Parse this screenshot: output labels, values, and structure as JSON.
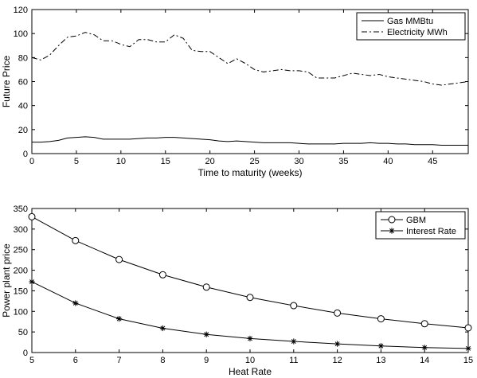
{
  "chart_data": [
    {
      "type": "line",
      "xlabel": "Time to maturity (weeks)",
      "ylabel": "Future Price",
      "xlim": [
        0,
        49
      ],
      "ylim": [
        0,
        120
      ],
      "xticks": [
        0,
        5,
        10,
        15,
        20,
        25,
        30,
        35,
        40,
        45
      ],
      "yticks": [
        0,
        20,
        40,
        60,
        80,
        100,
        120
      ],
      "legend": "top-right",
      "series": [
        {
          "name": "Gas MMBtu",
          "style": "solid",
          "marker": "none",
          "x": [
            0,
            1,
            2,
            3,
            4,
            5,
            6,
            7,
            8,
            9,
            10,
            11,
            12,
            13,
            14,
            15,
            16,
            17,
            18,
            19,
            20,
            21,
            22,
            23,
            24,
            25,
            26,
            27,
            28,
            29,
            30,
            31,
            32,
            33,
            34,
            35,
            36,
            37,
            38,
            39,
            40,
            41,
            42,
            43,
            44,
            45,
            46,
            47,
            48,
            49
          ],
          "values": [
            9.5,
            9.5,
            10,
            11,
            13,
            13.5,
            14,
            13.5,
            12,
            12,
            12,
            12,
            12.5,
            13,
            13,
            13.5,
            13.5,
            13,
            12.5,
            12,
            11.5,
            10.5,
            10,
            10.5,
            10,
            9.5,
            9,
            9,
            9,
            9,
            8.5,
            8,
            8,
            8,
            8,
            8.5,
            8.5,
            8.5,
            9,
            8.5,
            8.5,
            8,
            8,
            7.5,
            7.5,
            7.5,
            7,
            7,
            7,
            7
          ]
        },
        {
          "name": "Electricity MWh",
          "style": "dashdot",
          "marker": "none",
          "x": [
            0,
            1,
            2,
            3,
            4,
            5,
            6,
            7,
            8,
            9,
            10,
            11,
            12,
            13,
            14,
            15,
            16,
            17,
            18,
            19,
            20,
            21,
            22,
            23,
            24,
            25,
            26,
            27,
            28,
            29,
            30,
            31,
            32,
            33,
            34,
            35,
            36,
            37,
            38,
            39,
            40,
            41,
            42,
            43,
            44,
            45,
            46,
            47,
            48,
            49
          ],
          "values": [
            80,
            78,
            82,
            90,
            97,
            98,
            101,
            99,
            94,
            94,
            91,
            89,
            95,
            95,
            93,
            93,
            99,
            96,
            86,
            85,
            85,
            80,
            75,
            79,
            75,
            70,
            68,
            69,
            70,
            69,
            69,
            68,
            63,
            63,
            63,
            65,
            67,
            66,
            65,
            66,
            64,
            63,
            62,
            61,
            60,
            58,
            57,
            58,
            59,
            60
          ]
        }
      ]
    },
    {
      "type": "line",
      "xlabel": "Heat Rate",
      "ylabel": "Power plant price",
      "xlim": [
        5,
        15
      ],
      "ylim": [
        0,
        350
      ],
      "xticks": [
        5,
        6,
        7,
        8,
        9,
        10,
        11,
        12,
        13,
        14,
        15
      ],
      "yticks": [
        0,
        50,
        100,
        150,
        200,
        250,
        300,
        350
      ],
      "legend": "top-right",
      "series": [
        {
          "name": "GBM",
          "style": "solid",
          "marker": "circle",
          "x": [
            5,
            6,
            7,
            8,
            9,
            10,
            11,
            12,
            13,
            14,
            15
          ],
          "values": [
            330,
            272,
            226,
            189,
            159,
            134,
            114,
            96,
            82,
            70,
            60
          ]
        },
        {
          "name": "Interest Rate",
          "style": "solid",
          "marker": "star",
          "x": [
            5,
            6,
            7,
            8,
            9,
            10,
            11,
            12,
            13,
            14,
            15
          ],
          "values": [
            172,
            120,
            82,
            59,
            44,
            34,
            27,
            21,
            16,
            12,
            10
          ]
        }
      ]
    }
  ]
}
